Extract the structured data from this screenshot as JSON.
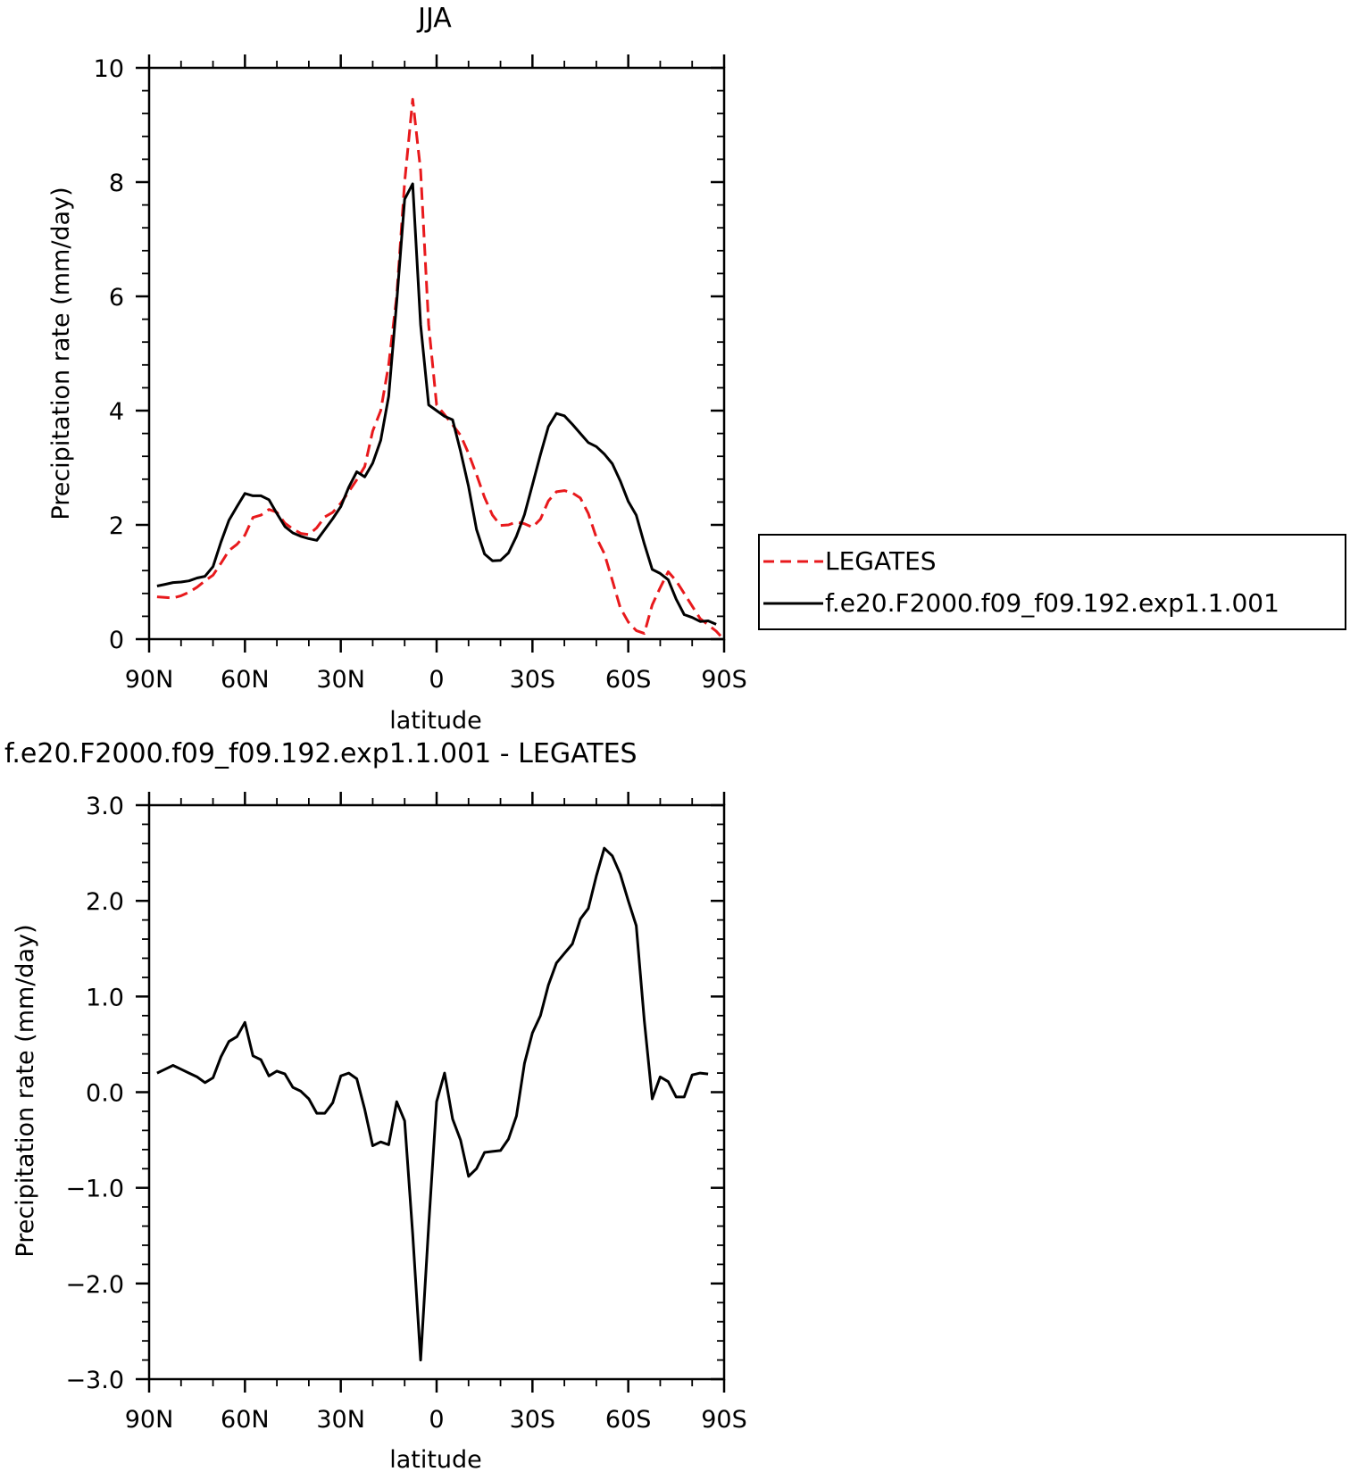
{
  "chart_data": [
    {
      "type": "line",
      "title": "JJA",
      "xlabel": "latitude",
      "ylabel": "Precipitation rate (mm/day)",
      "xlim": [
        90,
        -90
      ],
      "ylim": [
        0,
        10
      ],
      "x_ticks": [
        {
          "value": 90,
          "label": "90N"
        },
        {
          "value": 60,
          "label": "60N"
        },
        {
          "value": 30,
          "label": "30N"
        },
        {
          "value": 0,
          "label": "0"
        },
        {
          "value": -30,
          "label": "30S"
        },
        {
          "value": -60,
          "label": "60S"
        },
        {
          "value": -90,
          "label": "90S"
        }
      ],
      "y_ticks": [
        {
          "value": 0,
          "label": "0"
        },
        {
          "value": 2,
          "label": "2"
        },
        {
          "value": 4,
          "label": "4"
        },
        {
          "value": 6,
          "label": "6"
        },
        {
          "value": 8,
          "label": "8"
        },
        {
          "value": 10,
          "label": "10"
        }
      ],
      "legend_position": "right",
      "series": [
        {
          "name": "LEGATES",
          "color": "#e8191c",
          "dash": "dashed",
          "points": [
            [
              87.5,
              0.74
            ],
            [
              85,
              0.73
            ],
            [
              82.5,
              0.72
            ],
            [
              80,
              0.76
            ],
            [
              77.5,
              0.82
            ],
            [
              75,
              0.91
            ],
            [
              72.5,
              1.02
            ],
            [
              70,
              1.12
            ],
            [
              67.5,
              1.33
            ],
            [
              65,
              1.55
            ],
            [
              62.5,
              1.66
            ],
            [
              60,
              1.82
            ],
            [
              57.5,
              2.13
            ],
            [
              55,
              2.17
            ],
            [
              52.5,
              2.27
            ],
            [
              50,
              2.22
            ],
            [
              47.5,
              2.03
            ],
            [
              45,
              1.93
            ],
            [
              42.5,
              1.85
            ],
            [
              40,
              1.83
            ],
            [
              37.5,
              1.95
            ],
            [
              35,
              2.14
            ],
            [
              32.5,
              2.22
            ],
            [
              30,
              2.38
            ],
            [
              27.5,
              2.58
            ],
            [
              25,
              2.79
            ],
            [
              22.5,
              3.02
            ],
            [
              20,
              3.64
            ],
            [
              17.5,
              4.0
            ],
            [
              15,
              4.8
            ],
            [
              12.5,
              6.0
            ],
            [
              10,
              8.0
            ],
            [
              7.5,
              9.45
            ],
            [
              5,
              8.2
            ],
            [
              2.5,
              5.5
            ],
            [
              0,
              4.1
            ],
            [
              -2.5,
              3.93
            ],
            [
              -5,
              3.75
            ],
            [
              -7.5,
              3.57
            ],
            [
              -10,
              3.25
            ],
            [
              -12.5,
              2.88
            ],
            [
              -15,
              2.48
            ],
            [
              -17.5,
              2.17
            ],
            [
              -20,
              1.99
            ],
            [
              -22.5,
              2.0
            ],
            [
              -25,
              2.05
            ],
            [
              -27.5,
              2.02
            ],
            [
              -30,
              1.96
            ],
            [
              -32.5,
              2.1
            ],
            [
              -35,
              2.42
            ],
            [
              -37.5,
              2.58
            ],
            [
              -40,
              2.6
            ],
            [
              -42.5,
              2.56
            ],
            [
              -45,
              2.47
            ],
            [
              -47.5,
              2.2
            ],
            [
              -50,
              1.78
            ],
            [
              -52.5,
              1.5
            ],
            [
              -55,
              1.03
            ],
            [
              -57.5,
              0.55
            ],
            [
              -60,
              0.3
            ],
            [
              -62.5,
              0.15
            ],
            [
              -65,
              0.1
            ],
            [
              -67.5,
              0.6
            ],
            [
              -70,
              0.9
            ],
            [
              -72.5,
              1.18
            ],
            [
              -75,
              1.02
            ],
            [
              -77.5,
              0.8
            ],
            [
              -80,
              0.58
            ],
            [
              -82.5,
              0.36
            ],
            [
              -85,
              0.25
            ],
            [
              -87.5,
              0.14
            ],
            [
              -89,
              0.05
            ]
          ]
        },
        {
          "name": "f.e20.F2000.f09_f09.192.exp1.1.001",
          "color": "#000000",
          "dash": "solid",
          "points": [
            [
              87.5,
              0.93
            ],
            [
              85,
              0.96
            ],
            [
              82.5,
              0.99
            ],
            [
              80,
              1.0
            ],
            [
              77.5,
              1.02
            ],
            [
              75,
              1.07
            ],
            [
              72.5,
              1.1
            ],
            [
              70,
              1.27
            ],
            [
              67.5,
              1.7
            ],
            [
              65,
              2.08
            ],
            [
              62.5,
              2.32
            ],
            [
              60,
              2.55
            ],
            [
              57.5,
              2.51
            ],
            [
              55,
              2.51
            ],
            [
              52.5,
              2.44
            ],
            [
              50,
              2.2
            ],
            [
              47.5,
              1.97
            ],
            [
              45,
              1.86
            ],
            [
              42.5,
              1.8
            ],
            [
              40,
              1.76
            ],
            [
              37.5,
              1.73
            ],
            [
              35,
              1.92
            ],
            [
              32.5,
              2.11
            ],
            [
              30,
              2.32
            ],
            [
              27.5,
              2.66
            ],
            [
              25,
              2.93
            ],
            [
              22.5,
              2.84
            ],
            [
              20,
              3.08
            ],
            [
              17.5,
              3.48
            ],
            [
              15,
              4.25
            ],
            [
              12.5,
              5.9
            ],
            [
              10,
              7.7
            ],
            [
              7.5,
              7.97
            ],
            [
              5,
              5.5
            ],
            [
              2.5,
              4.1
            ],
            [
              0,
              4.0
            ],
            [
              -2.5,
              3.9
            ],
            [
              -5,
              3.84
            ],
            [
              -7.5,
              3.29
            ],
            [
              -10,
              2.67
            ],
            [
              -12.5,
              1.92
            ],
            [
              -15,
              1.49
            ],
            [
              -17.5,
              1.37
            ],
            [
              -20,
              1.38
            ],
            [
              -22.5,
              1.51
            ],
            [
              -25,
              1.8
            ],
            [
              -27.5,
              2.18
            ],
            [
              -30,
              2.7
            ],
            [
              -32.5,
              3.23
            ],
            [
              -35,
              3.72
            ],
            [
              -37.5,
              3.95
            ],
            [
              -40,
              3.91
            ],
            [
              -42.5,
              3.76
            ],
            [
              -45,
              3.6
            ],
            [
              -47.5,
              3.44
            ],
            [
              -50,
              3.37
            ],
            [
              -52.5,
              3.24
            ],
            [
              -55,
              3.07
            ],
            [
              -57.5,
              2.77
            ],
            [
              -60,
              2.41
            ],
            [
              -62.5,
              2.17
            ],
            [
              -65,
              1.67
            ],
            [
              -67.5,
              1.22
            ],
            [
              -70,
              1.15
            ],
            [
              -72.5,
              1.04
            ],
            [
              -75,
              0.7
            ],
            [
              -77.5,
              0.43
            ],
            [
              -80,
              0.38
            ],
            [
              -82.5,
              0.31
            ],
            [
              -85,
              0.32
            ],
            [
              -87.5,
              0.26
            ]
          ]
        }
      ]
    },
    {
      "type": "line",
      "title": "f.e20.F2000.f09_f09.192.exp1.1.001 - LEGATES",
      "xlabel": "latitude",
      "ylabel": "Precipitation rate (mm/day)",
      "xlim": [
        90,
        -90
      ],
      "ylim": [
        -3,
        3
      ],
      "x_ticks": [
        {
          "value": 90,
          "label": "90N"
        },
        {
          "value": 60,
          "label": "60N"
        },
        {
          "value": 30,
          "label": "30N"
        },
        {
          "value": 0,
          "label": "0"
        },
        {
          "value": -30,
          "label": "30S"
        },
        {
          "value": -60,
          "label": "60S"
        },
        {
          "value": -90,
          "label": "90S"
        }
      ],
      "y_ticks": [
        {
          "value": -3,
          "label": "-3.0"
        },
        {
          "value": -2,
          "label": "-2.0"
        },
        {
          "value": -1,
          "label": "-1.0"
        },
        {
          "value": 0,
          "label": "0.0"
        },
        {
          "value": 1,
          "label": "1.0"
        },
        {
          "value": 2,
          "label": "2.0"
        },
        {
          "value": 3,
          "label": "3.0"
        }
      ],
      "series": [
        {
          "color": "#000000",
          "dash": "solid",
          "points": [
            [
              87.5,
              0.2
            ],
            [
              85,
              0.24
            ],
            [
              82.5,
              0.28
            ],
            [
              80,
              0.24
            ],
            [
              77.5,
              0.2
            ],
            [
              75,
              0.16
            ],
            [
              72.5,
              0.1
            ],
            [
              70,
              0.15
            ],
            [
              67.5,
              0.37
            ],
            [
              65,
              0.53
            ],
            [
              62.5,
              0.58
            ],
            [
              60,
              0.73
            ],
            [
              57.5,
              0.38
            ],
            [
              55,
              0.34
            ],
            [
              52.5,
              0.17
            ],
            [
              50,
              0.22
            ],
            [
              47.5,
              0.19
            ],
            [
              45,
              0.05
            ],
            [
              42.5,
              0.01
            ],
            [
              40,
              -0.07
            ],
            [
              37.5,
              -0.22
            ],
            [
              35,
              -0.22
            ],
            [
              32.5,
              -0.11
            ],
            [
              30,
              0.17
            ],
            [
              27.5,
              0.2
            ],
            [
              25,
              0.14
            ],
            [
              22.5,
              -0.18
            ],
            [
              20,
              -0.56
            ],
            [
              17.5,
              -0.52
            ],
            [
              15,
              -0.55
            ],
            [
              12.5,
              -0.1
            ],
            [
              10,
              -0.3
            ],
            [
              7.5,
              -1.48
            ],
            [
              5,
              -2.8
            ],
            [
              2.5,
              -1.4
            ],
            [
              0,
              -0.1
            ],
            [
              -2.5,
              0.2
            ],
            [
              -5,
              -0.28
            ],
            [
              -7.5,
              -0.5
            ],
            [
              -10,
              -0.88
            ],
            [
              -12.5,
              -0.8
            ],
            [
              -15,
              -0.63
            ],
            [
              -17.5,
              -0.62
            ],
            [
              -20,
              -0.61
            ],
            [
              -22.5,
              -0.49
            ],
            [
              -25,
              -0.25
            ],
            [
              -27.5,
              0.3
            ],
            [
              -30,
              0.62
            ],
            [
              -32.5,
              0.8
            ],
            [
              -35,
              1.12
            ],
            [
              -37.5,
              1.35
            ],
            [
              -40,
              1.45
            ],
            [
              -42.5,
              1.55
            ],
            [
              -45,
              1.81
            ],
            [
              -47.5,
              1.92
            ],
            [
              -50,
              2.26
            ],
            [
              -52.5,
              2.55
            ],
            [
              -55,
              2.47
            ],
            [
              -57.5,
              2.28
            ],
            [
              -60,
              2.0
            ],
            [
              -62.5,
              1.74
            ],
            [
              -65,
              0.75
            ],
            [
              -67.5,
              -0.07
            ],
            [
              -70,
              0.16
            ],
            [
              -72.5,
              0.11
            ],
            [
              -75,
              -0.05
            ],
            [
              -77.5,
              -0.05
            ],
            [
              -80,
              0.18
            ],
            [
              -82.5,
              0.2
            ],
            [
              -85,
              0.19
            ]
          ]
        }
      ]
    }
  ]
}
